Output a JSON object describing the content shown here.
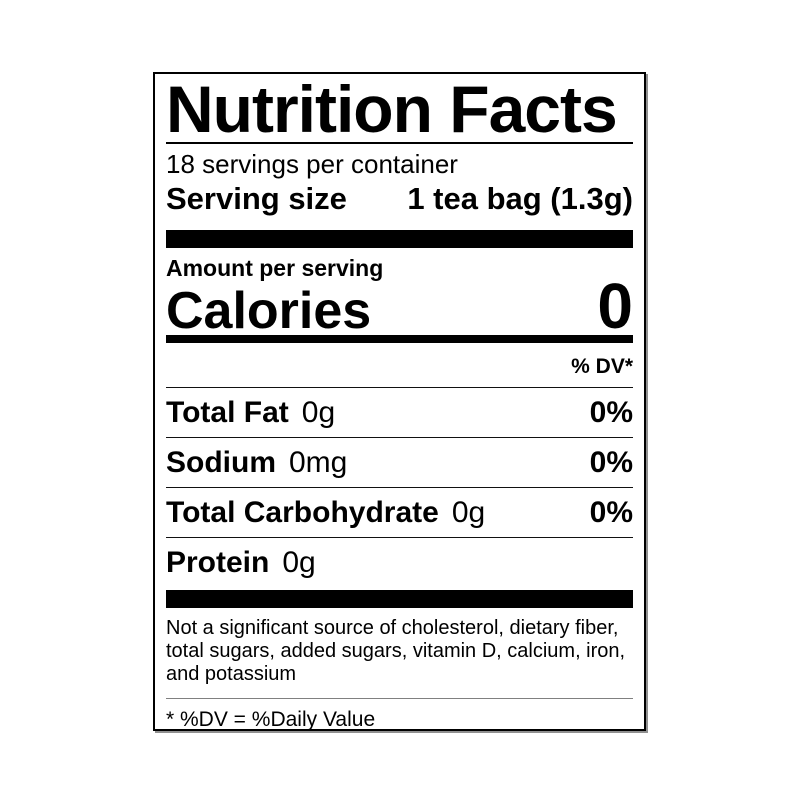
{
  "label": {
    "title": "Nutrition Facts",
    "servings_per_container": "18 servings per container",
    "serving_size": {
      "label": "Serving size",
      "value": "1 tea bag (1.3g)"
    },
    "amount_per_serving": "Amount per serving",
    "calories": {
      "label": "Calories",
      "value": "0"
    },
    "daily_value_header": "% DV*",
    "nutrients": [
      {
        "name": "Total Fat",
        "amount": "0g",
        "dv": "0%"
      },
      {
        "name": "Sodium",
        "amount": "0mg",
        "dv": "0%"
      },
      {
        "name": "Total Carbohydrate",
        "amount": "0g",
        "dv": "0%"
      },
      {
        "name": "Protein",
        "amount": "0g",
        "dv": ""
      }
    ],
    "footnote_lines": [
      "Not a significant source of cholesterol, dietary fiber,",
      "total sugars, added sugars, vitamin D, calcium, iron,",
      "and potassium"
    ],
    "dv_note": "* %DV = %Daily Value",
    "colors": {
      "ink": "#000000",
      "paper": "#ffffff",
      "hairline": "#808080"
    }
  }
}
